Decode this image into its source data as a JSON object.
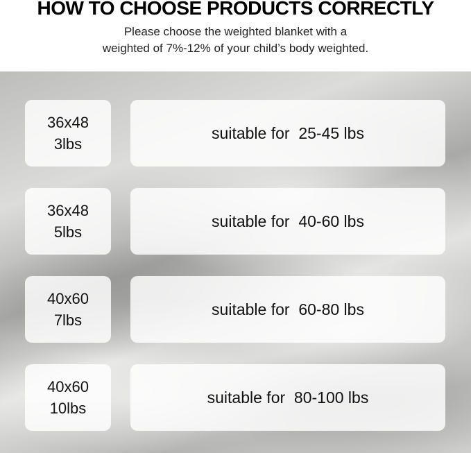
{
  "title": "HOW TO CHOOSE PRODUCTS CORRECTLY",
  "subtitle": [
    "Please choose the weighted blanket with a",
    "weighted of 7%-12% of your child’s body weighted."
  ],
  "rows": [
    {
      "size": "36x48",
      "weight": "3lbs",
      "range": "suitable for  25-45 lbs"
    },
    {
      "size": "36x48",
      "weight": "5lbs",
      "range": "suitable for  40-60 lbs"
    },
    {
      "size": "40x60",
      "weight": "7lbs",
      "range": "suitable for  60-80 lbs"
    },
    {
      "size": "40x60",
      "weight": "10lbs",
      "range": "suitable for  80-100 lbs"
    }
  ]
}
